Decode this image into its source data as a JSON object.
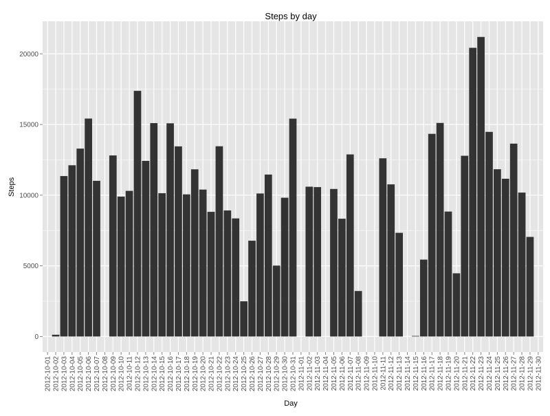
{
  "chart_data": {
    "type": "bar",
    "title": "Steps by day",
    "xlabel": "Day",
    "ylabel": "Steps",
    "ylim": [
      -1100,
      22300
    ],
    "y_ticks": [
      0,
      5000,
      10000,
      15000,
      20000
    ],
    "y_tick_labels": [
      "0",
      "5000",
      "10000",
      "15000",
      "20000"
    ],
    "grid": true,
    "bar_color": "#333333",
    "panel_color": "#e5e5e5",
    "grid_color": "#ffffff",
    "categories": [
      "2012-10-01",
      "2012-10-02",
      "2012-10-03",
      "2012-10-04",
      "2012-10-05",
      "2012-10-06",
      "2012-10-07",
      "2012-10-08",
      "2012-10-09",
      "2012-10-10",
      "2012-10-11",
      "2012-10-12",
      "2012-10-13",
      "2012-10-14",
      "2012-10-15",
      "2012-10-16",
      "2012-10-17",
      "2012-10-18",
      "2012-10-19",
      "2012-10-20",
      "2012-10-21",
      "2012-10-22",
      "2012-10-23",
      "2012-10-24",
      "2012-10-25",
      "2012-10-26",
      "2012-10-27",
      "2012-10-28",
      "2012-10-29",
      "2012-10-30",
      "2012-10-31",
      "2012-11-01",
      "2012-11-02",
      "2012-11-03",
      "2012-11-04",
      "2012-11-05",
      "2012-11-06",
      "2012-11-07",
      "2012-11-08",
      "2012-11-09",
      "2012-11-10",
      "2012-11-11",
      "2012-11-12",
      "2012-11-13",
      "2012-11-14",
      "2012-11-15",
      "2012-11-16",
      "2012-11-17",
      "2012-11-18",
      "2012-11-19",
      "2012-11-20",
      "2012-11-21",
      "2012-11-22",
      "2012-11-23",
      "2012-11-24",
      "2012-11-25",
      "2012-11-26",
      "2012-11-27",
      "2012-11-28",
      "2012-11-29",
      "2012-11-30"
    ],
    "values": [
      0,
      126,
      11352,
      12116,
      13294,
      15420,
      11015,
      0,
      12811,
      9900,
      10304,
      17382,
      12426,
      15098,
      10139,
      15084,
      13452,
      10056,
      11829,
      10395,
      8821,
      13460,
      8918,
      8355,
      2492,
      6778,
      10119,
      11458,
      5018,
      9819,
      15414,
      0,
      10600,
      10571,
      0,
      10439,
      8334,
      12883,
      3219,
      0,
      0,
      12608,
      10765,
      7336,
      0,
      41,
      5441,
      14339,
      15110,
      8841,
      4472,
      12787,
      20427,
      21194,
      14478,
      11834,
      11162,
      13646,
      10183,
      7047,
      0
    ]
  }
}
